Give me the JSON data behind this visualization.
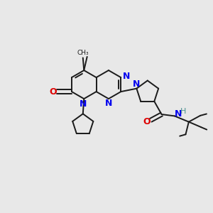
{
  "bg_color": "#e8e8e8",
  "bond_color": "#1a1a1a",
  "N_color": "#0000ee",
  "O_color": "#dd0000",
  "H_color": "#4a9090",
  "figsize": [
    3.0,
    3.0
  ],
  "dpi": 100,
  "xlim": [
    0,
    10
  ],
  "ylim": [
    0,
    10
  ]
}
